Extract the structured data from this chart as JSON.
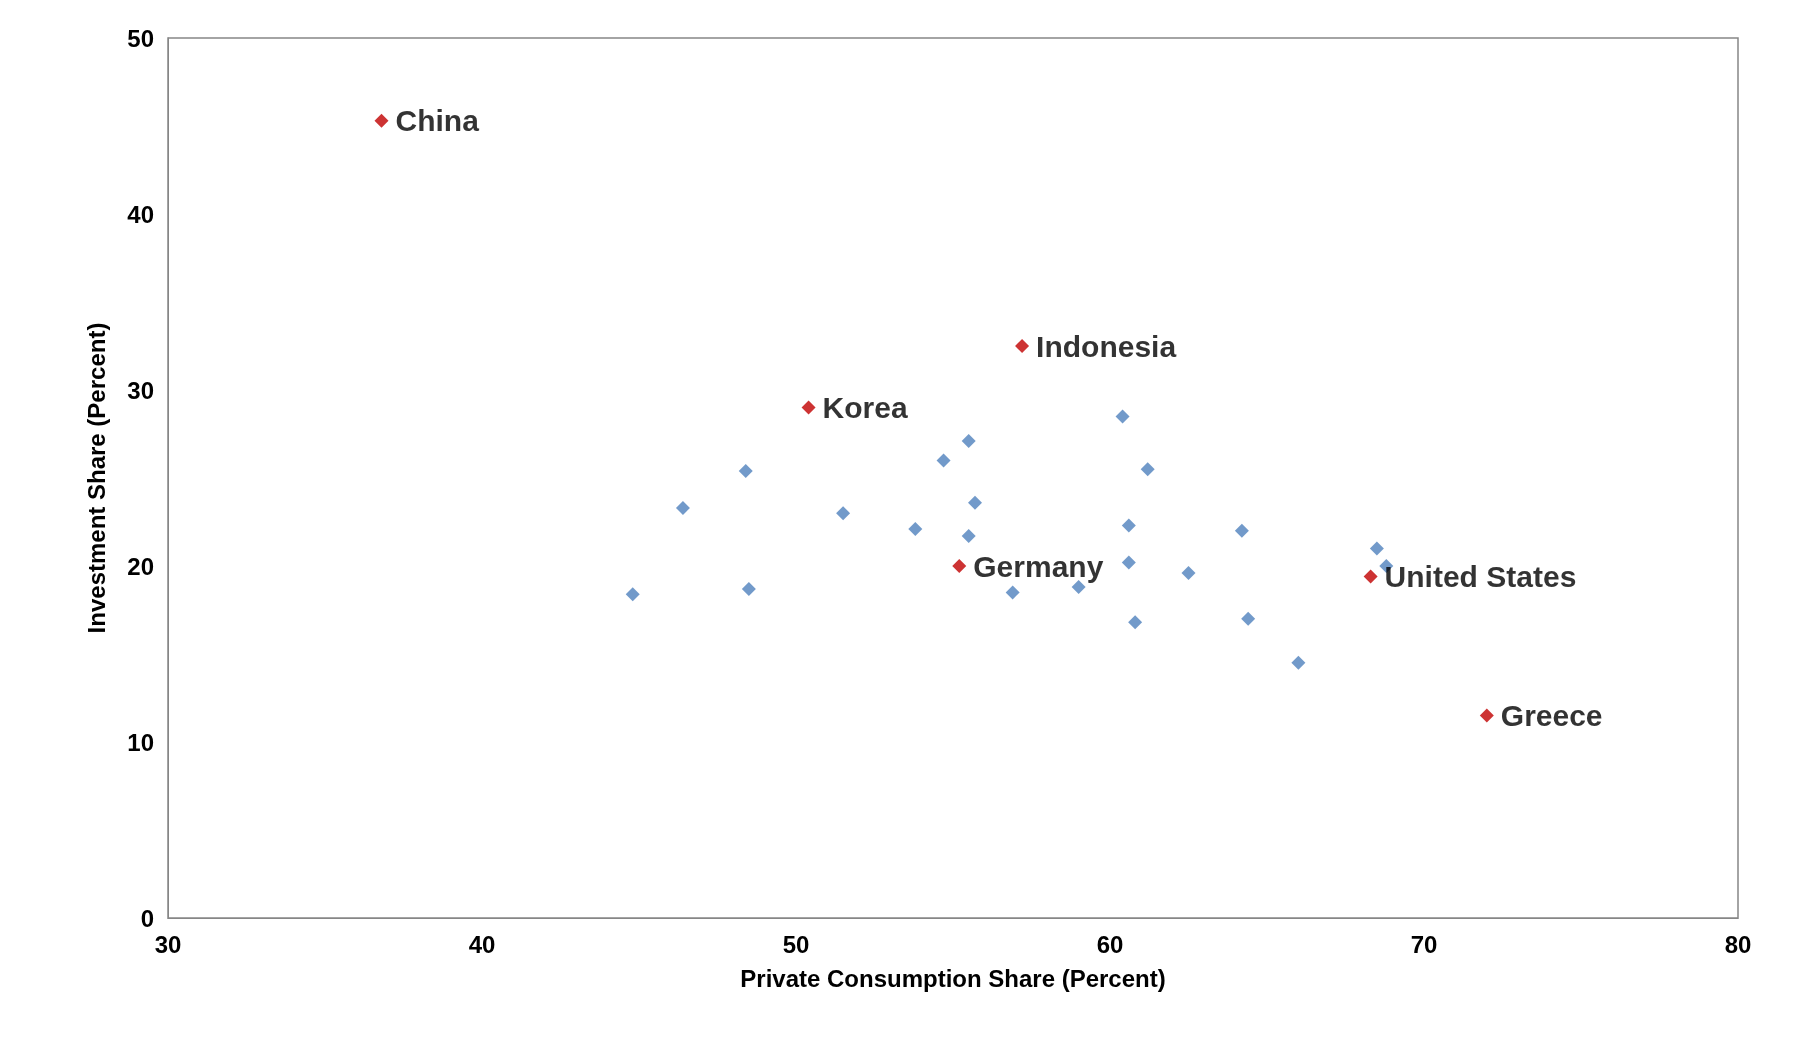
{
  "chart_data": {
    "type": "scatter",
    "xlabel": "Private Consumption Share (Percent)",
    "ylabel": "Investment Share (Percent)",
    "xlim": [
      30,
      80
    ],
    "ylim": [
      0,
      50
    ],
    "xticks": [
      30,
      40,
      50,
      60,
      70,
      80
    ],
    "yticks": [
      0,
      10,
      20,
      30,
      40,
      50
    ],
    "grid": false,
    "marker": "diamond",
    "series": [
      {
        "color": "#4f81bd",
        "x": [
          44.8,
          46.4,
          48.4,
          48.5,
          51.5,
          53.8,
          54.7,
          55.5,
          55.7,
          55.5,
          56.9,
          59.0,
          60.4,
          61.2,
          60.6,
          60.6,
          60.8,
          62.5,
          64.2,
          64.4,
          66.0,
          68.5,
          68.8
        ],
        "values": [
          18.4,
          23.3,
          25.4,
          18.7,
          23.0,
          22.1,
          26.0,
          27.1,
          23.6,
          21.7,
          18.5,
          18.8,
          28.5,
          25.5,
          22.3,
          20.2,
          16.8,
          19.6,
          22.0,
          17.0,
          14.5,
          21.0,
          20.0
        ]
      },
      {
        "color": "#c00000",
        "x": [
          36.8,
          50.4,
          57.2,
          55.2,
          68.3,
          72.0
        ],
        "values": [
          45.3,
          29.0,
          32.5,
          20.0,
          19.4,
          11.5
        ]
      }
    ],
    "annotations": [
      {
        "text": "China",
        "x": 36.8,
        "y": 45.3
      },
      {
        "text": "Korea",
        "x": 50.4,
        "y": 29.0
      },
      {
        "text": "Indonesia",
        "x": 57.2,
        "y": 32.5
      },
      {
        "text": "Germany",
        "x": 55.2,
        "y": 20.0
      },
      {
        "text": "United States",
        "x": 68.3,
        "y": 19.4
      },
      {
        "text": "Greece",
        "x": 72.0,
        "y": 11.5
      }
    ]
  }
}
